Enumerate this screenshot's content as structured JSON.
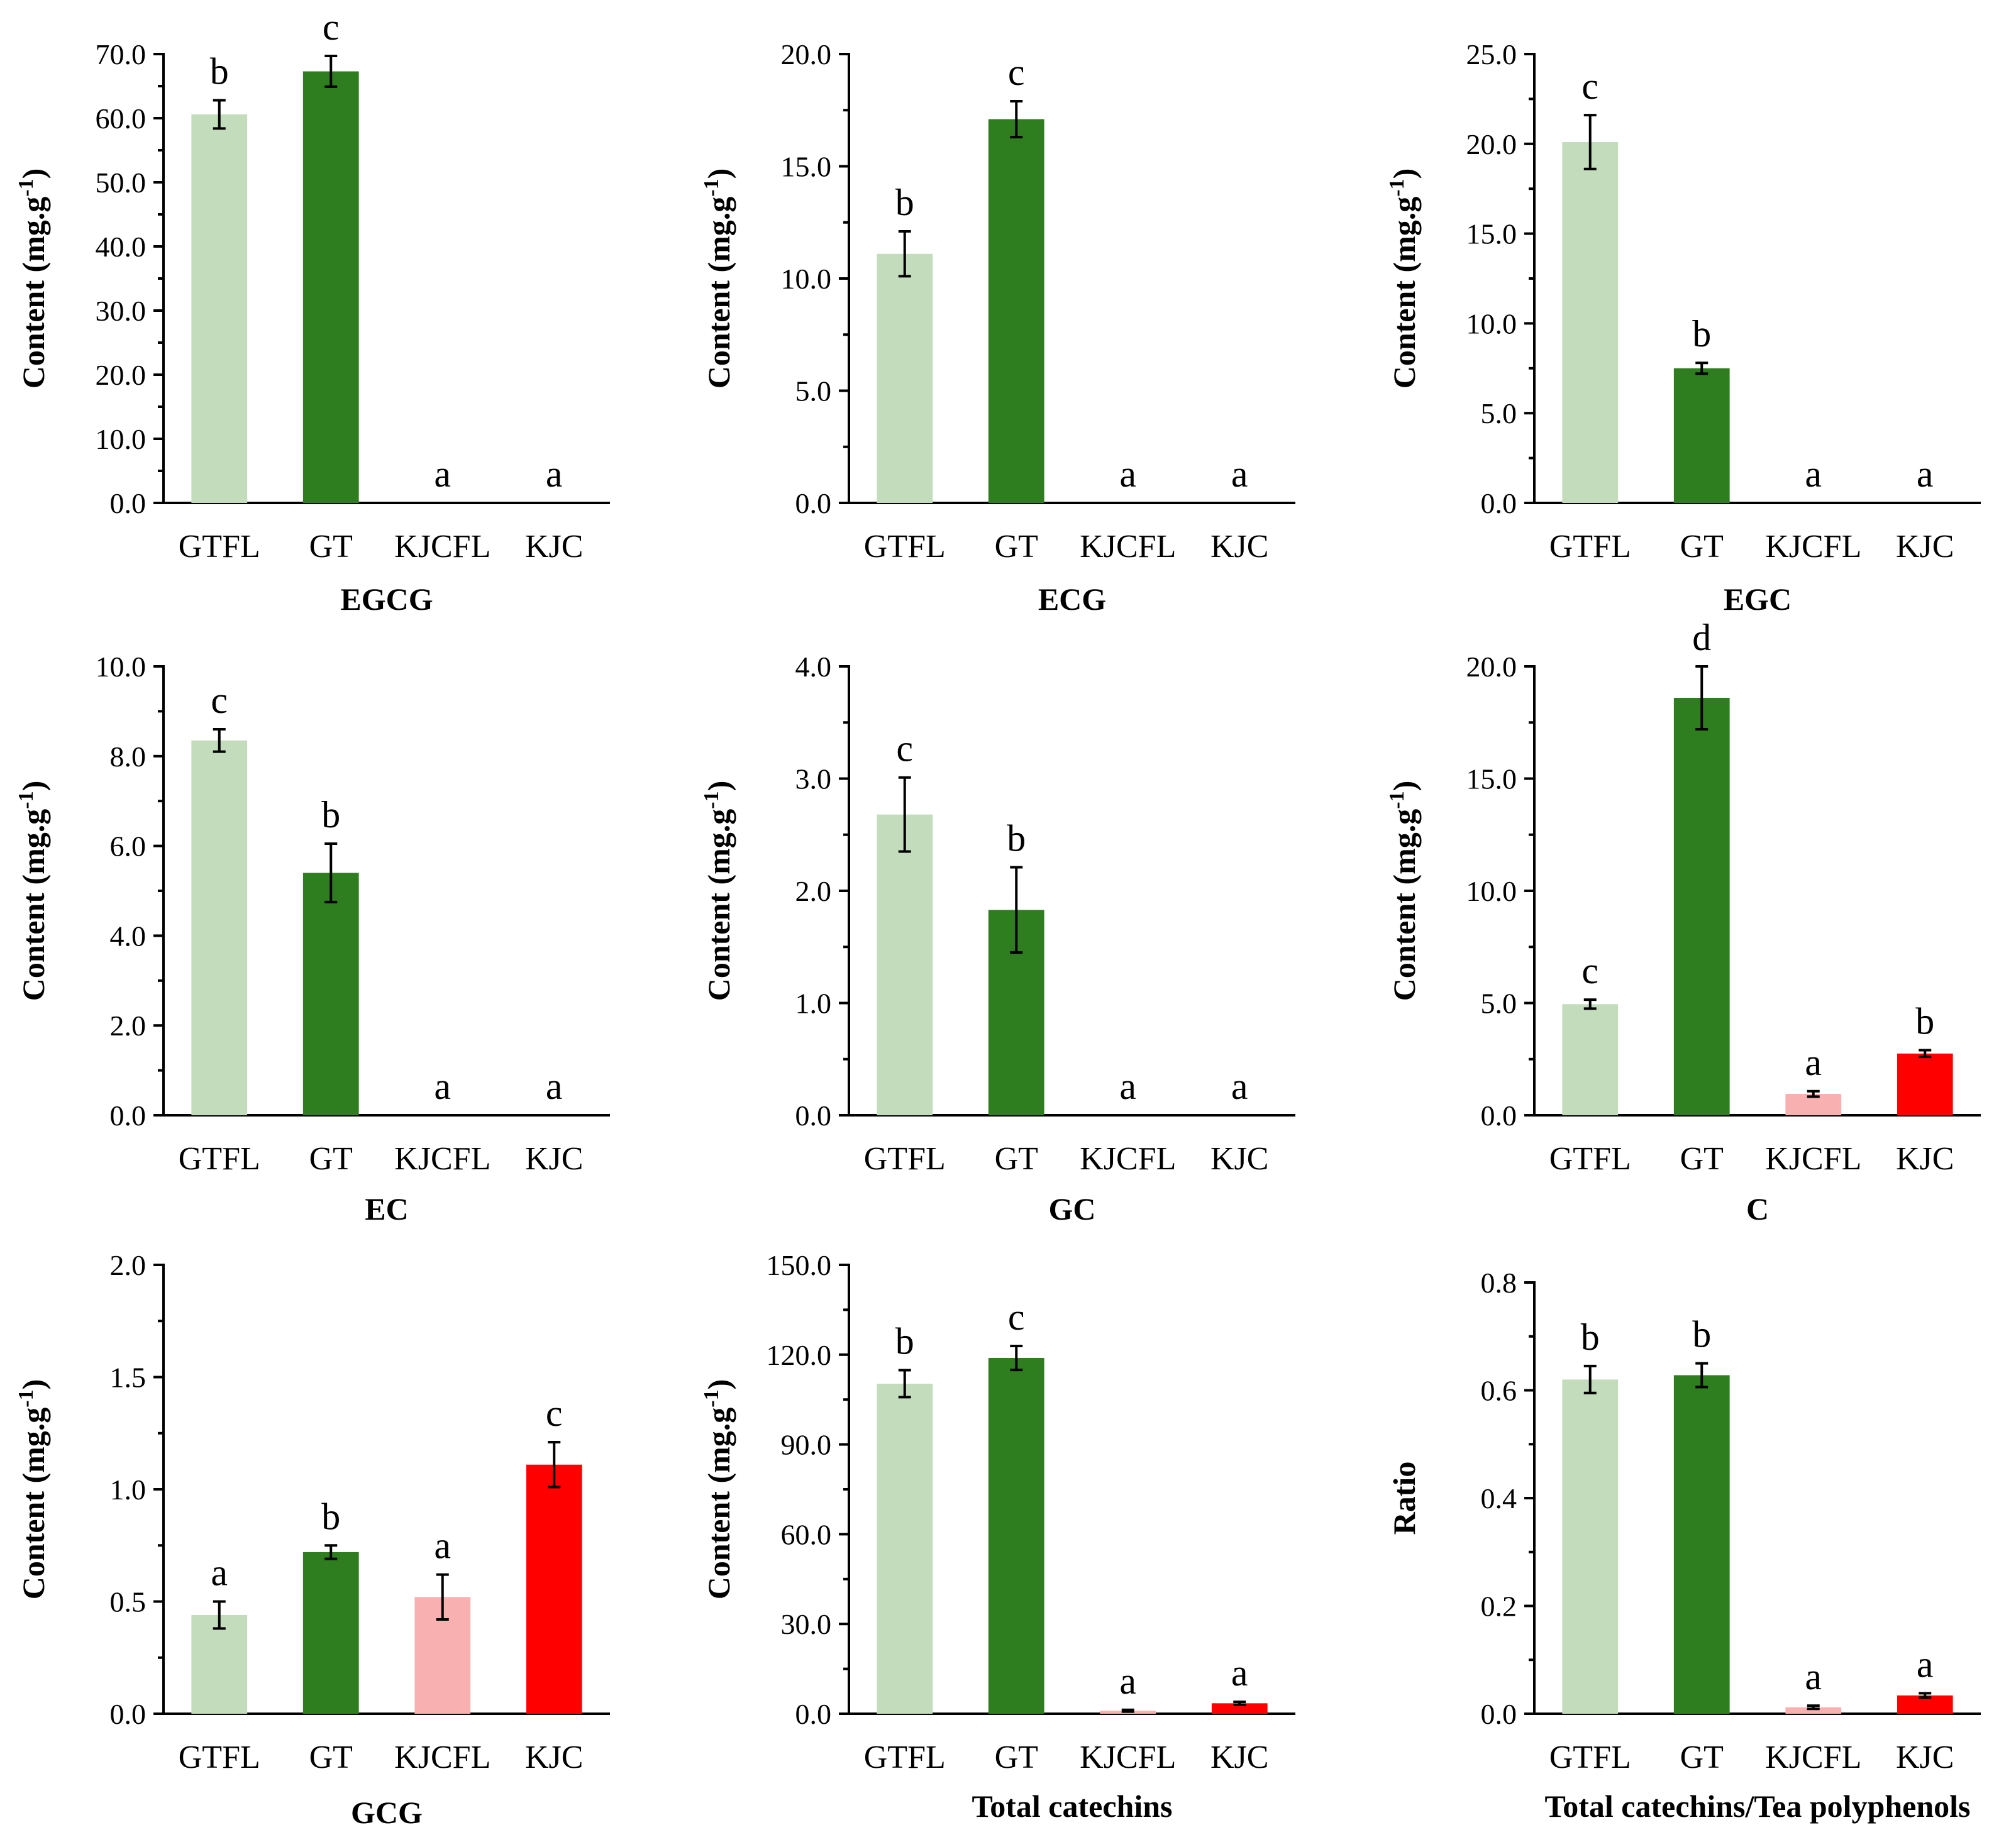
{
  "colors": {
    "GTFL": "#c2dcbc",
    "GT": "#2e7d1f",
    "KJCFL": "#f8b0b0",
    "KJC": "#ff0000"
  },
  "chart_data": [
    {
      "type": "bar",
      "title": "EGCG",
      "ylabel": "Content (mg.g-1)",
      "categories": [
        "GTFL",
        "GT",
        "KJCFL",
        "KJC"
      ],
      "values": [
        60.6,
        67.3,
        0,
        0
      ],
      "errors": [
        2.2,
        2.4,
        0,
        0
      ],
      "letters": [
        "b",
        "c",
        "a",
        "a"
      ],
      "ylim": [
        0,
        70
      ],
      "yticks": [
        "0.0",
        "10.0",
        "20.0",
        "30.0",
        "40.0",
        "50.0",
        "60.0",
        "70.0"
      ]
    },
    {
      "type": "bar",
      "title": "ECG",
      "ylabel": "Content (mg.g-1)",
      "categories": [
        "GTFL",
        "GT",
        "KJCFL",
        "KJC"
      ],
      "values": [
        11.1,
        17.1,
        0,
        0
      ],
      "errors": [
        1.0,
        0.8,
        0,
        0
      ],
      "letters": [
        "b",
        "c",
        "a",
        "a"
      ],
      "ylim": [
        0,
        20
      ],
      "yticks": [
        "0.0",
        "5.0",
        "10.0",
        "15.0",
        "20.0"
      ]
    },
    {
      "type": "bar",
      "title": "EGC",
      "ylabel": "Content (mg.g-1)",
      "categories": [
        "GTFL",
        "GT",
        "KJCFL",
        "KJC"
      ],
      "values": [
        20.1,
        7.5,
        0,
        0
      ],
      "errors": [
        1.5,
        0.3,
        0,
        0
      ],
      "letters": [
        "c",
        "b",
        "a",
        "a"
      ],
      "ylim": [
        0,
        25
      ],
      "yticks": [
        "0.0",
        "5.0",
        "10.0",
        "15.0",
        "20.0",
        "25.0"
      ]
    },
    {
      "type": "bar",
      "title": "EC",
      "ylabel": "Content (mg.g-1)",
      "categories": [
        "GTFL",
        "GT",
        "KJCFL",
        "KJC"
      ],
      "values": [
        8.35,
        5.4,
        0,
        0
      ],
      "errors": [
        0.25,
        0.65,
        0,
        0
      ],
      "letters": [
        "c",
        "b",
        "a",
        "a"
      ],
      "ylim": [
        0,
        10
      ],
      "yticks": [
        "0.0",
        "2.0",
        "4.0",
        "6.0",
        "8.0",
        "10.0"
      ]
    },
    {
      "type": "bar",
      "title": "GC",
      "ylabel": "Content (mg.g-1)",
      "categories": [
        "GTFL",
        "GT",
        "KJCFL",
        "KJC"
      ],
      "values": [
        2.68,
        1.83,
        0,
        0
      ],
      "errors": [
        0.33,
        0.38,
        0,
        0
      ],
      "letters": [
        "c",
        "b",
        "a",
        "a"
      ],
      "ylim": [
        0,
        4
      ],
      "yticks": [
        "0.0",
        "1.0",
        "2.0",
        "3.0",
        "4.0"
      ]
    },
    {
      "type": "bar",
      "title": "C",
      "ylabel": "Content (mg.g-1)",
      "categories": [
        "GTFL",
        "GT",
        "KJCFL",
        "KJC"
      ],
      "values": [
        4.95,
        18.6,
        0.95,
        2.75
      ],
      "errors": [
        0.2,
        1.4,
        0.12,
        0.15
      ],
      "letters": [
        "c",
        "d",
        "a",
        "b"
      ],
      "ylim": [
        0,
        20
      ],
      "yticks": [
        "0.0",
        "5.0",
        "10.0",
        "15.0",
        "20.0"
      ]
    },
    {
      "type": "bar",
      "title": "GCG",
      "ylabel": "Content (mg.g-1)",
      "categories": [
        "GTFL",
        "GT",
        "KJCFL",
        "KJC"
      ],
      "values": [
        0.44,
        0.72,
        0.52,
        1.11
      ],
      "errors": [
        0.06,
        0.03,
        0.1,
        0.1
      ],
      "letters": [
        "a",
        "b",
        "a",
        "c"
      ],
      "ylim": [
        0,
        2
      ],
      "yticks": [
        "0.0",
        "0.5",
        "1.0",
        "1.5",
        "2.0"
      ]
    },
    {
      "type": "bar",
      "title": "Total catechins",
      "ylabel": "Content (mg.g-1)",
      "categories": [
        "GTFL",
        "GT",
        "KJCFL",
        "KJC"
      ],
      "values": [
        110.3,
        118.9,
        1.0,
        3.5
      ],
      "errors": [
        4.5,
        4.0,
        0.3,
        0.5
      ],
      "letters": [
        "b",
        "c",
        "a",
        "a"
      ],
      "ylim": [
        0,
        150
      ],
      "yticks": [
        "0.0",
        "30.0",
        "60.0",
        "90.0",
        "120.0",
        "150.0"
      ]
    },
    {
      "type": "bar",
      "title": "Total catechins/Tea polyphenols",
      "ylabel": "Ratio",
      "categories": [
        "GTFL",
        "GT",
        "KJCFL",
        "KJC"
      ],
      "values": [
        0.62,
        0.628,
        0.012,
        0.034
      ],
      "errors": [
        0.025,
        0.022,
        0.003,
        0.004
      ],
      "letters": [
        "b",
        "b",
        "a",
        "a"
      ],
      "ylim": [
        0,
        0.8
      ],
      "yticks": [
        "0.0",
        "0.2",
        "0.4",
        "0.6",
        "0.8"
      ]
    }
  ]
}
